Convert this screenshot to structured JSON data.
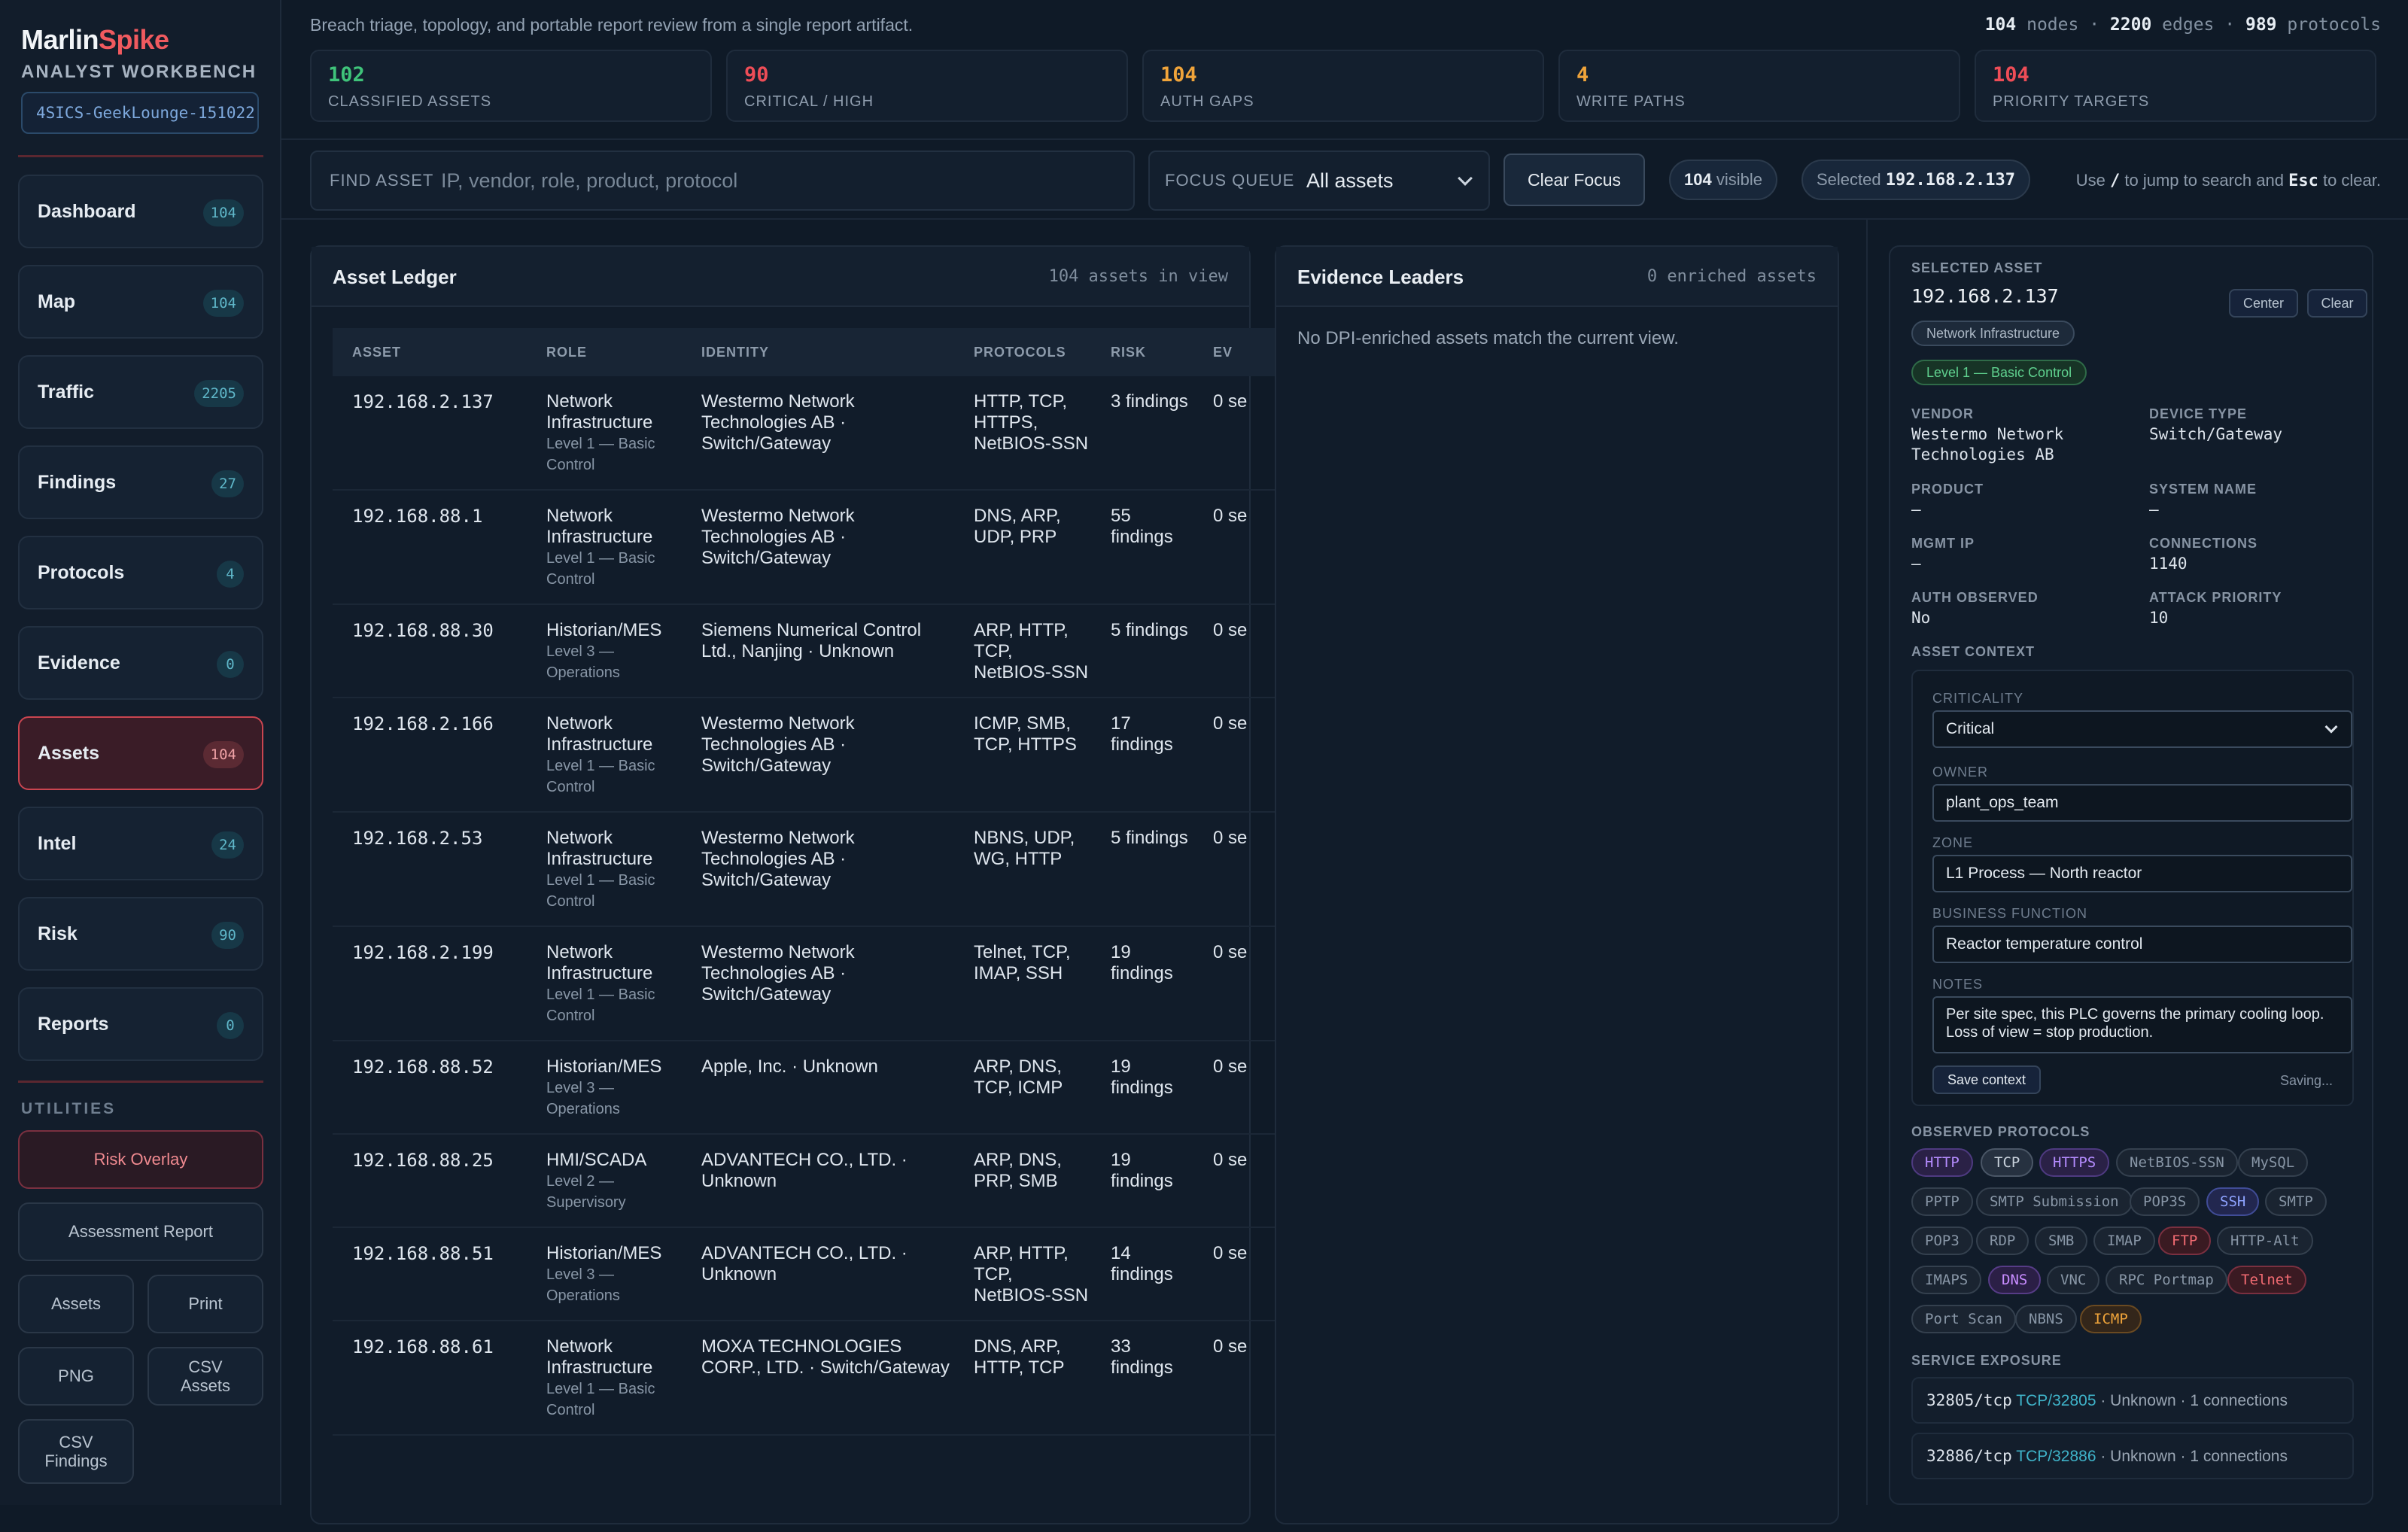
{
  "app": {
    "brand_a": "Marlin",
    "brand_b": "Spike",
    "subtitle": "ANALYST WORKBENCH",
    "capture": "4SICS-GeekLounge-151022"
  },
  "nav": [
    {
      "label": "Dashboard",
      "count": "104"
    },
    {
      "label": "Map",
      "count": "104"
    },
    {
      "label": "Traffic",
      "count": "2205"
    },
    {
      "label": "Findings",
      "count": "27"
    },
    {
      "label": "Protocols",
      "count": "4"
    },
    {
      "label": "Evidence",
      "count": "0"
    },
    {
      "label": "Assets",
      "count": "104",
      "active": true
    },
    {
      "label": "Intel",
      "count": "24"
    },
    {
      "label": "Risk",
      "count": "90"
    },
    {
      "label": "Reports",
      "count": "0"
    }
  ],
  "utilities": {
    "title": "UTILITIES",
    "risk_overlay": "Risk Overlay",
    "assessment_report": "Assessment Report",
    "assets": "Assets",
    "print": "Print",
    "png": "PNG",
    "csv_assets": "CSV Assets",
    "csv_findings": "CSV Findings"
  },
  "header": {
    "tagline": "Breach triage, topology, and portable report review from a single report artifact.",
    "nodes": "104",
    "nodes_label": "nodes",
    "edges": "2200",
    "edges_label": "edges",
    "protocols": "989",
    "protocols_label": "protocols",
    "cards": [
      {
        "value": "102",
        "label": "CLASSIFIED ASSETS",
        "color": "#3fc37a"
      },
      {
        "value": "90",
        "label": "CRITICAL / HIGH",
        "color": "#ee4d57"
      },
      {
        "value": "104",
        "label": "AUTH GAPS",
        "color": "#f0a43a"
      },
      {
        "value": "4",
        "label": "WRITE PATHS",
        "color": "#f0a43a"
      },
      {
        "value": "104",
        "label": "PRIORITY TARGETS",
        "color": "#ee4d57"
      }
    ]
  },
  "toolbar": {
    "find_label": "FIND ASSET",
    "find_placeholder": "IP, vendor, role, product, protocol",
    "focus_label": "FOCUS QUEUE",
    "focus_value": "All assets",
    "clear_focus": "Clear Focus",
    "visible_count": "104",
    "visible_label": "visible",
    "selected_label": "Selected",
    "selected_value": "192.168.2.137",
    "hint_a": "Use",
    "hint_key1": "/",
    "hint_b": "to jump to search and",
    "hint_key2": "Esc",
    "hint_c": "to clear."
  },
  "ledger": {
    "title": "Asset Ledger",
    "meta": "104 assets in view",
    "columns": [
      "ASSET",
      "ROLE",
      "IDENTITY",
      "PROTOCOLS",
      "RISK",
      "EV"
    ],
    "rows": [
      {
        "asset": "192.168.2.137",
        "role": "Network Infrastructure",
        "level": "Level 1 — Basic Control",
        "identity": "Westermo Network Technologies AB · Switch/Gateway",
        "protocols": "HTTP, TCP, HTTPS, NetBIOS-SSN",
        "risk": "3 findings",
        "ev": "0 se"
      },
      {
        "asset": "192.168.88.1",
        "role": "Network Infrastructure",
        "level": "Level 1 — Basic Control",
        "identity": "Westermo Network Technologies AB · Switch/Gateway",
        "protocols": "DNS, ARP, UDP, PRP",
        "risk": "55 findings",
        "ev": "0 se"
      },
      {
        "asset": "192.168.88.30",
        "role": "Historian/MES",
        "level": "Level 3 — Operations",
        "identity": "Siemens Numerical Control Ltd., Nanjing · Unknown",
        "protocols": "ARP, HTTP, TCP, NetBIOS-SSN",
        "risk": "5 findings",
        "ev": "0 se"
      },
      {
        "asset": "192.168.2.166",
        "role": "Network Infrastructure",
        "level": "Level 1 — Basic Control",
        "identity": "Westermo Network Technologies AB · Switch/Gateway",
        "protocols": "ICMP, SMB, TCP, HTTPS",
        "risk": "17 findings",
        "ev": "0 se"
      },
      {
        "asset": "192.168.2.53",
        "role": "Network Infrastructure",
        "level": "Level 1 — Basic Control",
        "identity": "Westermo Network Technologies AB · Switch/Gateway",
        "protocols": "NBNS, UDP, WG, HTTP",
        "risk": "5 findings",
        "ev": "0 se"
      },
      {
        "asset": "192.168.2.199",
        "role": "Network Infrastructure",
        "level": "Level 1 — Basic Control",
        "identity": "Westermo Network Technologies AB · Switch/Gateway",
        "protocols": "Telnet, TCP, IMAP, SSH",
        "risk": "19 findings",
        "ev": "0 se"
      },
      {
        "asset": "192.168.88.52",
        "role": "Historian/MES",
        "level": "Level 3 — Operations",
        "identity": "Apple, Inc. · Unknown",
        "protocols": "ARP, DNS, TCP, ICMP",
        "risk": "19 findings",
        "ev": "0 se"
      },
      {
        "asset": "192.168.88.25",
        "role": "HMI/SCADA",
        "level": "Level 2 — Supervisory",
        "identity": "ADVANTECH CO., LTD. · Unknown",
        "protocols": "ARP, DNS, PRP, SMB",
        "risk": "19 findings",
        "ev": "0 se"
      },
      {
        "asset": "192.168.88.51",
        "role": "Historian/MES",
        "level": "Level 3 — Operations",
        "identity": "ADVANTECH CO., LTD. · Unknown",
        "protocols": "ARP, HTTP, TCP, NetBIOS-SSN",
        "risk": "14 findings",
        "ev": "0 se"
      },
      {
        "asset": "192.168.88.61",
        "role": "Network Infrastructure",
        "level": "Level 1 — Basic Control",
        "identity": "MOXA TECHNOLOGIES CORP., LTD. · Switch/Gateway",
        "protocols": "DNS, ARP, HTTP, TCP",
        "risk": "33 findings",
        "ev": "0 se"
      }
    ]
  },
  "evidence": {
    "title": "Evidence Leaders",
    "meta": "0 enriched assets",
    "empty": "No DPI-enriched assets match the current view."
  },
  "detail": {
    "section": "SELECTED ASSET",
    "ip": "192.168.2.137",
    "center": "Center",
    "clear": "Clear",
    "role_tag": "Network Infrastructure",
    "level_tag": "Level 1 — Basic Control",
    "fields": {
      "vendor_label": "VENDOR",
      "vendor": "Westermo Network Technologies AB",
      "device_type_label": "DEVICE TYPE",
      "device_type": "Switch/Gateway",
      "product_label": "PRODUCT",
      "product": "—",
      "system_name_label": "SYSTEM NAME",
      "system_name": "—",
      "mgmt_ip_label": "MGMT IP",
      "mgmt_ip": "—",
      "connections_label": "CONNECTIONS",
      "connections": "1140",
      "auth_label": "AUTH OBSERVED",
      "auth": "No",
      "priority_label": "ATTACK PRIORITY",
      "priority": "10"
    },
    "context": {
      "title": "ASSET CONTEXT",
      "criticality_label": "CRITICALITY",
      "criticality": "Critical",
      "owner_label": "OWNER",
      "owner": "plant_ops_team",
      "zone_label": "ZONE",
      "zone": "L1 Process — North reactor",
      "function_label": "BUSINESS FUNCTION",
      "function": "Reactor temperature control",
      "notes_label": "NOTES",
      "notes": "Per site spec, this PLC governs the primary cooling loop. Loss of view = stop production.",
      "save": "Save context",
      "status": "Saving..."
    },
    "protocols_title": "OBSERVED PROTOCOLS",
    "protocols": [
      {
        "name": "HTTP",
        "color": "#b58cff",
        "bg": "#2a2146",
        "border": "#4e3a80"
      },
      {
        "name": "TCP",
        "color": "#c9d2dc",
        "bg": "#263140",
        "border": "#4a5666"
      },
      {
        "name": "HTTPS",
        "color": "#b58cff",
        "bg": "#2a2146",
        "border": "#4e3a80"
      },
      {
        "name": "NetBIOS-SSN",
        "color": "#8896a6",
        "bg": "#1a2431",
        "border": "#34404e"
      },
      {
        "name": "MySQL",
        "color": "#8896a6",
        "bg": "#1a2431",
        "border": "#34404e"
      },
      {
        "name": "PPTP",
        "color": "#8896a6",
        "bg": "#1a2431",
        "border": "#34404e"
      },
      {
        "name": "SMTP Submission",
        "color": "#8896a6",
        "bg": "#1a2431",
        "border": "#34404e"
      },
      {
        "name": "POP3S",
        "color": "#8896a6",
        "bg": "#1a2431",
        "border": "#34404e"
      },
      {
        "name": "SSH",
        "color": "#8ea3ff",
        "bg": "#22274f",
        "border": "#404c96"
      },
      {
        "name": "SMTP",
        "color": "#8896a6",
        "bg": "#1a2431",
        "border": "#34404e"
      },
      {
        "name": "POP3",
        "color": "#8896a6",
        "bg": "#1a2431",
        "border": "#34404e"
      },
      {
        "name": "RDP",
        "color": "#8896a6",
        "bg": "#1a2431",
        "border": "#34404e"
      },
      {
        "name": "SMB",
        "color": "#8896a6",
        "bg": "#1a2431",
        "border": "#34404e"
      },
      {
        "name": "IMAP",
        "color": "#8896a6",
        "bg": "#1a2431",
        "border": "#34404e"
      },
      {
        "name": "FTP",
        "color": "#f26b72",
        "bg": "#3a1a22",
        "border": "#7a3040"
      },
      {
        "name": "HTTP-Alt",
        "color": "#8896a6",
        "bg": "#1a2431",
        "border": "#34404e"
      },
      {
        "name": "IMAPS",
        "color": "#8896a6",
        "bg": "#1a2431",
        "border": "#34404e"
      },
      {
        "name": "DNS",
        "color": "#c88cff",
        "bg": "#2b1f46",
        "border": "#563c86"
      },
      {
        "name": "VNC",
        "color": "#8896a6",
        "bg": "#1a2431",
        "border": "#34404e"
      },
      {
        "name": "RPC Portmap",
        "color": "#8896a6",
        "bg": "#1a2431",
        "border": "#34404e"
      },
      {
        "name": "Telnet",
        "color": "#f26b72",
        "bg": "#3a1a22",
        "border": "#7a3040"
      },
      {
        "name": "Port Scan",
        "color": "#8896a6",
        "bg": "#1a2431",
        "border": "#34404e"
      },
      {
        "name": "NBNS",
        "color": "#8896a6",
        "bg": "#1a2431",
        "border": "#34404e"
      },
      {
        "name": "ICMP",
        "color": "#f0a43a",
        "bg": "#33261a",
        "border": "#6a4a22"
      }
    ],
    "exposure_title": "SERVICE EXPOSURE",
    "services": [
      {
        "port": "32805/tcp",
        "proto": "TCP/32805",
        "meta": "· Unknown · 1 connections"
      },
      {
        "port": "32886/tcp",
        "proto": "TCP/32886",
        "meta": "· Unknown · 1 connections"
      }
    ]
  }
}
